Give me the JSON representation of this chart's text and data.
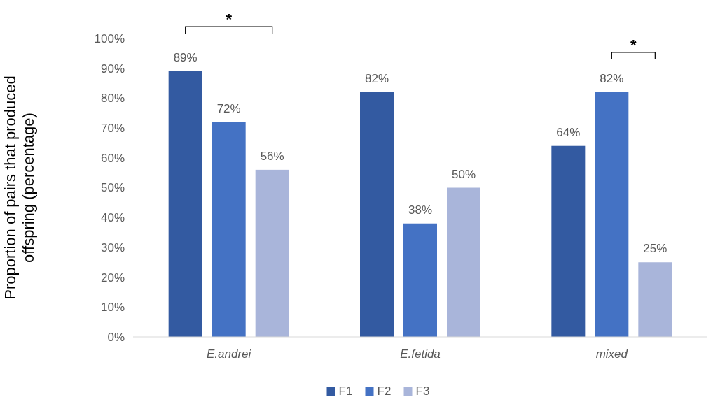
{
  "chart_data": {
    "type": "bar",
    "ylabel": "Proportion of pairs that produced\noffspring (percentage)",
    "categories": [
      "E.andrei",
      "E.fetida",
      "mixed"
    ],
    "series": [
      {
        "name": "F1",
        "color": "#335aa1",
        "values": [
          89,
          82,
          64
        ],
        "value_labels": [
          "89%",
          "82%",
          "64%"
        ]
      },
      {
        "name": "F2",
        "color": "#4472c4",
        "values": [
          72,
          38,
          82
        ],
        "value_labels": [
          "72%",
          "38%",
          "82%"
        ]
      },
      {
        "name": "F3",
        "color": "#a9b5da",
        "values": [
          56,
          50,
          25
        ],
        "value_labels": [
          "56%",
          "50%",
          "25%"
        ]
      }
    ],
    "ylim": [
      0,
      100
    ],
    "yticks": [
      {
        "value": 0,
        "label": "0%"
      },
      {
        "value": 10,
        "label": "10%"
      },
      {
        "value": 20,
        "label": "20%"
      },
      {
        "value": 30,
        "label": "30%"
      },
      {
        "value": 40,
        "label": "40%"
      },
      {
        "value": 50,
        "label": "50%"
      },
      {
        "value": 60,
        "label": "60%"
      },
      {
        "value": 70,
        "label": "70%"
      },
      {
        "value": 80,
        "label": "80%"
      },
      {
        "value": 90,
        "label": "90%"
      },
      {
        "value": 100,
        "label": "100%"
      }
    ],
    "annotations": [
      "*",
      "*"
    ],
    "legend": "bottom",
    "grid": false
  }
}
